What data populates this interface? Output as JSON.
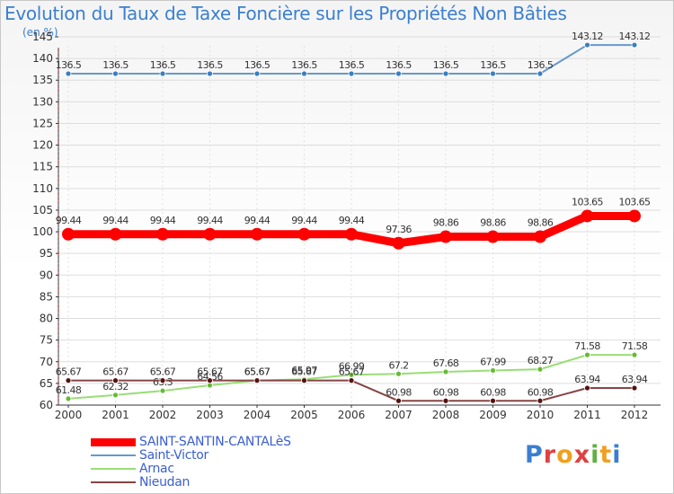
{
  "chart_data": {
    "type": "line",
    "title": "Evolution du Taux de Taxe Foncière sur les Propriétés Non Bâties",
    "ylabel": "(en %)",
    "xlabel": "",
    "categories": [
      "2000",
      "2001",
      "2002",
      "2003",
      "2004",
      "2005",
      "2006",
      "2007",
      "2008",
      "2009",
      "2010",
      "2011",
      "2012"
    ],
    "ylim": [
      60,
      145
    ],
    "yticks": [
      60,
      65,
      70,
      75,
      80,
      85,
      90,
      95,
      100,
      105,
      110,
      115,
      120,
      125,
      130,
      135,
      140,
      145
    ],
    "legend_position": "bottom-left",
    "series": [
      {
        "name": "SAINT-SANTIN-CANTALèS",
        "color": "#ff0000",
        "point_color": "#ff0000",
        "width": "thick",
        "values": [
          99.44,
          99.44,
          99.44,
          99.44,
          99.44,
          99.44,
          99.44,
          97.36,
          98.86,
          98.86,
          98.86,
          103.65,
          103.65
        ],
        "labels": [
          "99.44",
          "99.44",
          "99.44",
          "99.44",
          "99.44",
          "99.44",
          "99.44",
          "97.36",
          "98.86",
          "98.86",
          "98.86",
          "103.65",
          "103.65"
        ]
      },
      {
        "name": "Saint-Victor",
        "color": "#6699cc",
        "point_color": "#3a7fc0",
        "width": "thin",
        "values": [
          136.5,
          136.5,
          136.5,
          136.5,
          136.5,
          136.5,
          136.5,
          136.5,
          136.5,
          136.5,
          136.5,
          143.12,
          143.12
        ],
        "labels": [
          "136.5",
          "136.5",
          "136.5",
          "136.5",
          "136.5",
          "136.5",
          "136.5",
          "136.5",
          "136.5",
          "136.5",
          "136.5",
          "143.12",
          "143.12"
        ]
      },
      {
        "name": "Arnac",
        "color": "#99dd77",
        "point_color": "#66bb33",
        "width": "thin",
        "values": [
          61.48,
          62.32,
          63.3,
          64.56,
          65.67,
          65.97,
          66.99,
          67.2,
          67.68,
          67.99,
          68.27,
          71.58,
          71.58
        ],
        "labels": [
          "61.48",
          "62.32",
          "63.3",
          "64.56",
          "65.67",
          "65.97",
          "66.99",
          "67.2",
          "67.68",
          "67.99",
          "68.27",
          "71.58",
          "71.58"
        ]
      },
      {
        "name": "Nieudan",
        "color": "#884444",
        "point_color": "#551111",
        "width": "thin",
        "values": [
          65.67,
          65.67,
          65.67,
          65.67,
          65.67,
          65.67,
          65.67,
          60.98,
          60.98,
          60.98,
          60.98,
          63.94,
          63.94
        ],
        "labels": [
          "65.67",
          "65.67",
          "65.67",
          "65.67",
          "65.67",
          "65.67",
          "65.67",
          "60.98",
          "60.98",
          "60.98",
          "60.98",
          "63.94",
          "63.94"
        ]
      }
    ]
  }
}
